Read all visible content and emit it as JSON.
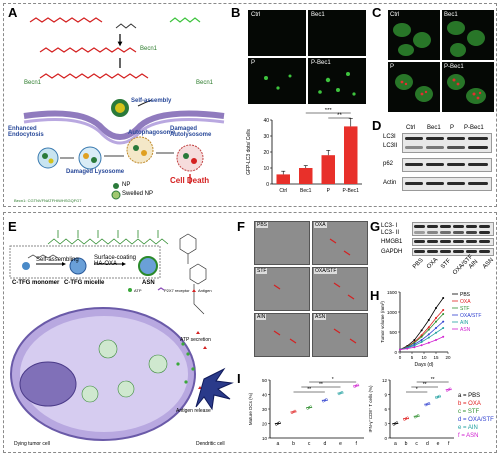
{
  "panels": {
    "A": "A",
    "B": "B",
    "C": "C",
    "D": "D",
    "E": "E",
    "F": "F",
    "G": "G",
    "H": "H",
    "I": "I"
  },
  "colors": {
    "bar": "#e8302a",
    "red": "#d42020",
    "green": "#3ec43e",
    "frame": "#8a8a8a"
  },
  "A": {
    "becn1": "Becn1",
    "becn1_l": "Becn1",
    "becn1_r": "Becn1",
    "self_assembly": "Self-assembly",
    "enhanced": "Enhanced\nEndocytosis",
    "damaged_lys": "Damaged Lysosome",
    "autophagosome": "Autophagosome",
    "damaged_auto": "Damaged\nAutolysosome",
    "cell_death": "Cell Death",
    "np": "NP",
    "swelled": "Swelled NP",
    "peptide": "Becn1: CGTNVFNATFHIWHSGQFGT"
  },
  "B": {
    "ctrl": "Ctrl",
    "bec1": "Bec1",
    "p": "P",
    "pbec1": "P-Bec1"
  },
  "C": {
    "ctrl": "Ctrl",
    "bec1": "Bec1",
    "p": "P",
    "pbec1": "P-Bec1"
  },
  "D": {
    "cols": [
      "Ctrl",
      "Bec1",
      "P",
      "P-Bec1"
    ],
    "rows": [
      "LC3I",
      "LC3II",
      "p62",
      "Actin"
    ]
  },
  "E": {
    "monomer": "C-TFG monomer",
    "self": "Self-assembling",
    "coating": "Surface-coating\nHA-OXA",
    "micelle": "C-TFG micelle",
    "asn": "ASN",
    "atp": "ATP",
    "p2x7": "P2X7 receptor",
    "antigen": "Antigen",
    "atp_sec": "ATP secretion",
    "antigen_rel": "Antigen release",
    "dying": "Dying tumor cell",
    "dendritic": "Dendritic cell"
  },
  "F": {
    "labels": [
      "PBS",
      "OXA",
      "STF",
      "OXA/STF",
      "AIN",
      "ASN"
    ]
  },
  "G": {
    "cols": [
      "PBS",
      "OXA",
      "STF",
      "OXA/STF",
      "AIN",
      "ASN"
    ],
    "rows": [
      "LC3- I",
      "LC3- II",
      "HMGB1",
      "GAPDH"
    ]
  },
  "legend_H": [
    "PBS",
    "OXA",
    "STF",
    "OXA/STF",
    "AIN",
    "ASN"
  ],
  "legend_I": [
    "a = PBS",
    "b = OXA",
    "c = STF",
    "d = OXA/STF",
    "e = AIN",
    "f = ASN"
  ],
  "chart_data": [
    {
      "type": "bar",
      "categories": [
        "Ctrl",
        "Bec1",
        "P",
        "P-Bec1"
      ],
      "values": [
        6,
        10,
        18,
        36
      ],
      "errors": [
        2,
        1.5,
        3,
        5
      ],
      "ylabel": "GFP-LC3 dots/ Cells",
      "ylim": [
        0,
        40
      ],
      "yticks": [
        0,
        10,
        20,
        30,
        40
      ],
      "sig": [
        "**",
        "***"
      ]
    },
    {
      "type": "line",
      "xlabel": "Days (d)",
      "ylabel": "Tumor volume (mm³)",
      "xlim": [
        0,
        20
      ],
      "ylim": [
        0,
        1500
      ],
      "xticks": [
        0,
        5,
        10,
        15,
        20
      ],
      "yticks": [
        0,
        500,
        1000,
        1500
      ],
      "x": [
        0,
        3,
        6,
        9,
        12,
        15,
        18
      ],
      "series": [
        {
          "name": "PBS",
          "color": "#000000",
          "values": [
            60,
            150,
            300,
            540,
            800,
            1100,
            1350
          ]
        },
        {
          "name": "OXA",
          "color": "#e02020",
          "values": [
            60,
            130,
            250,
            420,
            620,
            850,
            1050
          ]
        },
        {
          "name": "STF",
          "color": "#2f8f2f",
          "values": [
            60,
            125,
            230,
            380,
            560,
            760,
            950
          ]
        },
        {
          "name": "OXA/STF",
          "color": "#3040d0",
          "values": [
            60,
            110,
            190,
            300,
            440,
            600,
            760
          ]
        },
        {
          "name": "AIN",
          "color": "#20a0a0",
          "values": [
            60,
            100,
            160,
            250,
            360,
            480,
            600
          ]
        },
        {
          "name": "ASN",
          "color": "#d020d0",
          "values": [
            60,
            85,
            120,
            170,
            230,
            300,
            380
          ]
        }
      ]
    },
    {
      "type": "scatter",
      "ylabel": "Mature DCs (%)",
      "categories": [
        "a",
        "b",
        "c",
        "d",
        "e",
        "f"
      ],
      "values": [
        20,
        28,
        31,
        36,
        41,
        46
      ],
      "ylim": [
        10,
        50
      ],
      "yticks": [
        10,
        20,
        30,
        40,
        50
      ],
      "colors": [
        "#000000",
        "#e02020",
        "#2f8f2f",
        "#3040d0",
        "#20a0a0",
        "#d020d0"
      ],
      "sig": [
        "*",
        "**",
        "**"
      ]
    },
    {
      "type": "scatter",
      "ylabel": "IFN-γ⁺CD8⁺ T cells (%)",
      "categories": [
        "a",
        "b",
        "c",
        "d",
        "e",
        "f"
      ],
      "values": [
        3,
        4,
        4.5,
        7,
        8.5,
        10
      ],
      "ylim": [
        0,
        12
      ],
      "yticks": [
        0,
        3,
        6,
        9,
        12
      ],
      "colors": [
        "#000000",
        "#e02020",
        "#2f8f2f",
        "#3040d0",
        "#20a0a0",
        "#d020d0"
      ],
      "sig": [
        "**",
        "**",
        "*"
      ]
    }
  ]
}
